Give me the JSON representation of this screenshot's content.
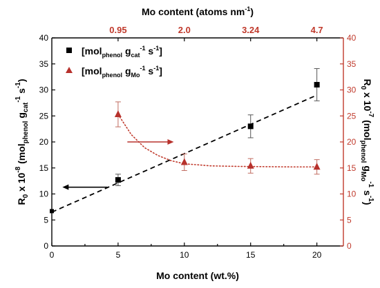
{
  "chart_data": {
    "type": "scatter",
    "x_axis": {
      "label": "Mo content (wt.%)",
      "range": [
        0,
        22
      ],
      "ticks": [
        0,
        5,
        10,
        15,
        20
      ]
    },
    "top_axis": {
      "label_main": "Mo content (atoms nm",
      "label_sup": "-1",
      "label_end": ")",
      "ticks": [
        {
          "x": 5,
          "label": "0.95"
        },
        {
          "x": 10,
          "label": "2.0"
        },
        {
          "x": 15,
          "label": "3.24"
        },
        {
          "x": 20,
          "label": "4.7"
        }
      ]
    },
    "y_left": {
      "range": [
        0,
        40
      ],
      "ticks": [
        0,
        5,
        10,
        15,
        20,
        25,
        30,
        35,
        40
      ],
      "label": {
        "p1": "R",
        "p1_sub": "0",
        "p2": " x 10",
        "p2_sup": "-8",
        "p3": " (mol",
        "p3_sub": "phenol",
        "p4": " g",
        "p4_sub": "cat",
        "p4_sup": "-1",
        "p5": " s",
        "p5_sup": "-1",
        "p6": ")"
      }
    },
    "y_right": {
      "range": [
        0,
        40
      ],
      "ticks": [
        0,
        5,
        10,
        15,
        20,
        25,
        30,
        35,
        40
      ],
      "label": {
        "p1": "R",
        "p1_sub": "0",
        "p2": " x 10",
        "p2_sup": "-7",
        "p3": " (mol",
        "p3_sub": "phenol",
        "p4": " g",
        "p4_sub": "Mo",
        "p4_sup": "-1",
        "p5": " s",
        "p5_sup": "-1",
        "p6": ")"
      }
    },
    "series": [
      {
        "legend": {
          "t1": "[mol",
          "s1": "phenol",
          "t2": " g",
          "s2": "cat",
          "u2": "-1",
          "t3": " s",
          "u3": "-1",
          "t4": "]"
        },
        "marker": "square",
        "color": "#000000",
        "axis": "left",
        "points": [
          {
            "x": 5,
            "y": 12.7,
            "err": 1.1
          },
          {
            "x": 15,
            "y": 23.0,
            "err": 2.2
          },
          {
            "x": 20,
            "y": 31.0,
            "err": 3.1
          }
        ]
      },
      {
        "legend": {
          "t1": "[mol",
          "s1": "phenol",
          "t2": " g",
          "s2": "Mo",
          "u2": "-1",
          "t3": " s",
          "u3": "-1",
          "t4": "]"
        },
        "marker": "triangle",
        "color": "#b7312c",
        "axis": "right",
        "points": [
          {
            "x": 5,
            "y": 25.3,
            "err": 2.4
          },
          {
            "x": 10,
            "y": 16.1,
            "err": 1.6
          },
          {
            "x": 15,
            "y": 15.4,
            "err": 1.4
          },
          {
            "x": 20,
            "y": 15.2,
            "err": 1.4
          }
        ]
      }
    ],
    "extra_point": {
      "x": 0,
      "y": 6.7
    },
    "linear_fit": {
      "x": [
        0,
        20
      ],
      "y": [
        6.5,
        29.0
      ]
    },
    "decay_fit": {
      "x": [
        5,
        6,
        7,
        8,
        9,
        10,
        12,
        14,
        16,
        18,
        20
      ],
      "y": [
        25.3,
        21.4,
        18.9,
        17.4,
        16.4,
        15.8,
        15.4,
        15.3,
        15.25,
        15.2,
        15.2
      ]
    },
    "arrows": [
      {
        "from_x": 4.2,
        "to_x": 0.8,
        "y": 11.3,
        "color": "#000000"
      },
      {
        "from_x": 5.7,
        "to_x": 9.2,
        "y": 20.0,
        "color": "#b7312c"
      }
    ]
  }
}
